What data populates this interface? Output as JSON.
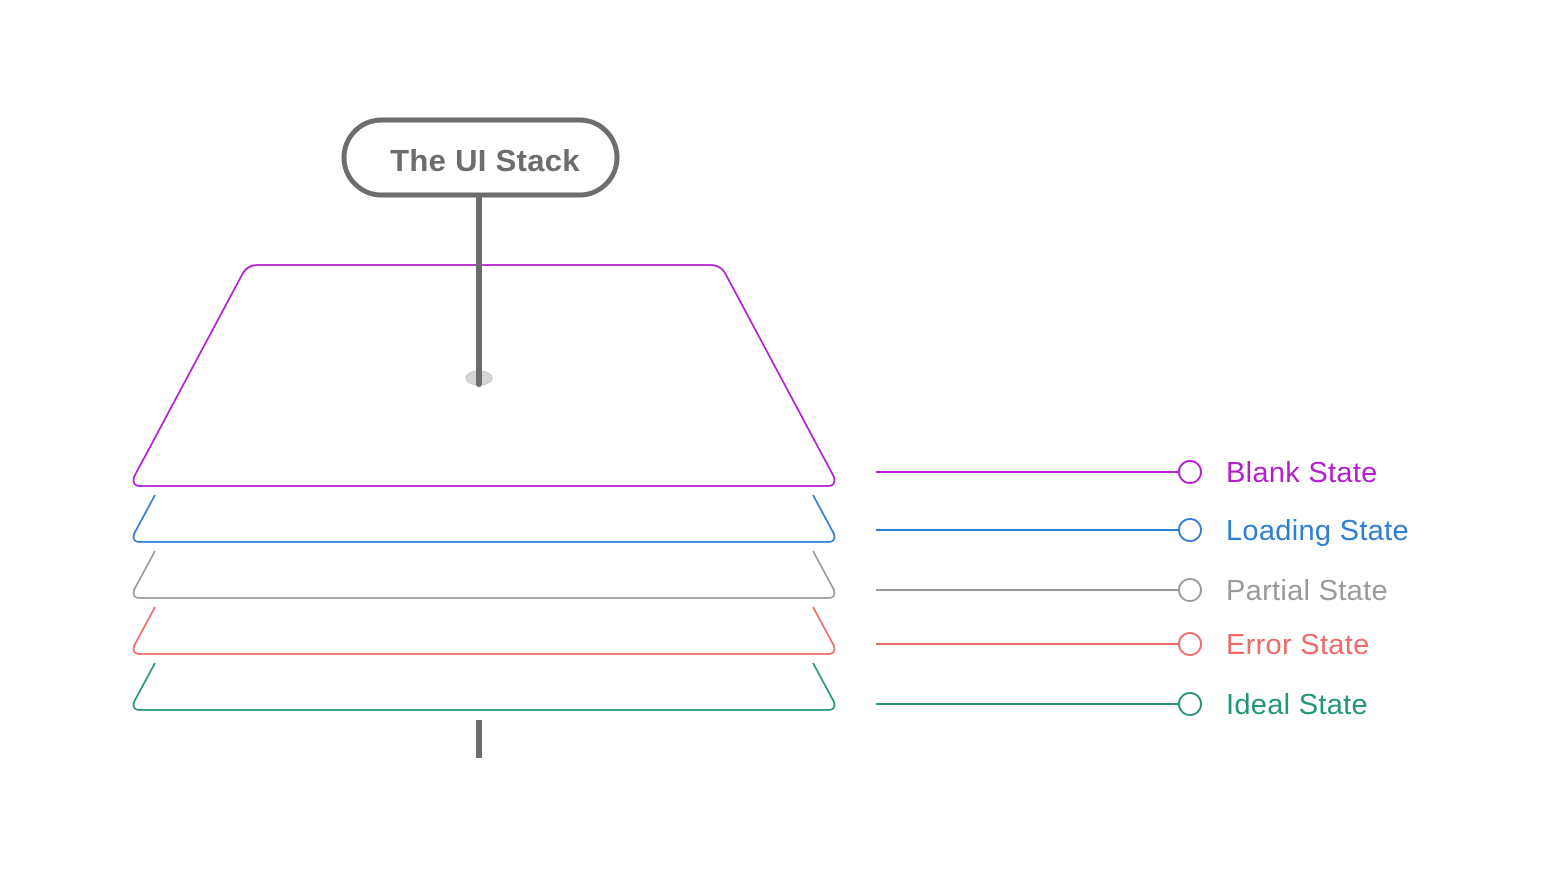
{
  "title": {
    "text": "The UI Stack",
    "color": "#6d6d6d"
  },
  "stack": {
    "pole_color": "#6d6d6d",
    "pin_color": "#d6d6d6"
  },
  "layers": [
    {
      "id": "blank",
      "label": "Blank State",
      "color": "#b51ecf"
    },
    {
      "id": "loading",
      "label": "Loading State",
      "color": "#2f7fd3"
    },
    {
      "id": "partial",
      "label": "Partial State",
      "color": "#9a9a9a"
    },
    {
      "id": "error",
      "label": "Error State",
      "color": "#ef6b6b"
    },
    {
      "id": "ideal",
      "label": "Ideal State",
      "color": "#23967a"
    }
  ]
}
